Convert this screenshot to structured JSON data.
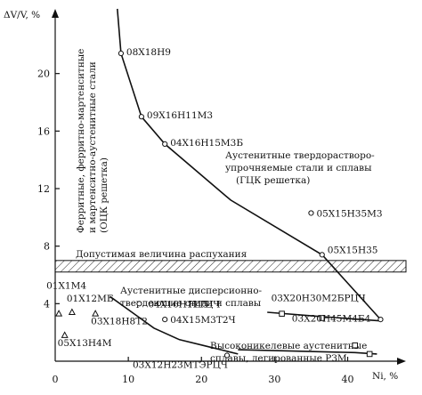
{
  "chart_data": {
    "type": "scatter",
    "title": "",
    "ylabel": "ΔV/V, %",
    "xlabel": "Ni, %",
    "xlim": [
      0,
      47
    ],
    "ylim": [
      0,
      24
    ],
    "x_ticks": [
      10,
      20,
      30,
      40
    ],
    "y_ticks": [
      4,
      8,
      12,
      16,
      20
    ],
    "zero_label": "0",
    "allowable_band": {
      "label": "Допустимая величина распухания",
      "y_from": 6.2,
      "y_to": 7.0
    },
    "region_labels": {
      "ferritic": [
        "Ферритные, ферритно-мартенситные",
        "и мартенситно-аустенитные стали",
        "(ОЦК решетка)"
      ],
      "austenitic_solid_solution": [
        "Аустенитные твердораствoро-",
        "упрочняемые стали и сплавы",
        "(ГЦК решетка)"
      ],
      "austenitic_dispersion": [
        "Аустенитные дисперсионно-",
        "твердеющие стали и сплавы"
      ],
      "high_nickel": [
        "Высоконикелевые аустенитные",
        "сплавы, легированные РЗМ"
      ]
    },
    "series": [
      {
        "points": [
          {
            "x": 9.0,
            "y": 21.4,
            "label": "08Х18Н9"
          },
          {
            "x": 11.8,
            "y": 17.0,
            "label": "09Х16Н11М3"
          },
          {
            "x": 15.0,
            "y": 15.1,
            "label": "04Х16Н15М3Б"
          },
          {
            "x": 35.0,
            "y": 10.3,
            "label": "05Х15Н35М3"
          },
          {
            "x": 36.5,
            "y": 7.4,
            "label": "05Х15Н35"
          },
          {
            "x": 44.5,
            "y": 2.9,
            "label": ""
          }
        ],
        "curve": [
          [
            8.5,
            24.5
          ],
          [
            9.0,
            21.4
          ],
          [
            11.8,
            17.0
          ],
          [
            15.0,
            15.1
          ],
          [
            24.0,
            11.2
          ],
          [
            36.5,
            7.4
          ],
          [
            44.5,
            2.9
          ]
        ]
      },
      {
        "points": [
          {
            "x": 0.5,
            "y": 3.3,
            "label": "01Х1М4"
          },
          {
            "x": 2.3,
            "y": 3.4,
            "label": "01Х12МБ"
          },
          {
            "x": 5.5,
            "y": 3.3,
            "label": "03Х18Н8Т2"
          },
          {
            "x": 1.3,
            "y": 1.8,
            "label": "05Х13Н4М"
          }
        ]
      },
      {
        "points": [
          {
            "x": 11.5,
            "y": 4.0,
            "label": "04Х16Н11ТЦЧ"
          },
          {
            "x": 17.0,
            "y": 4.0,
            "label": "Н15"
          },
          {
            "x": 15.0,
            "y": 2.9,
            "label": "04Х15М3Т2Ч"
          },
          {
            "x": 23.5,
            "y": 0.4,
            "label": "03Х12Н23МТЭРЦЧ"
          }
        ],
        "curve": [
          [
            7.5,
            4.5
          ],
          [
            10.5,
            3.4
          ],
          [
            13.5,
            2.3
          ],
          [
            17.0,
            1.5
          ],
          [
            21.0,
            1.0
          ],
          [
            25.0,
            0.5
          ]
        ]
      },
      {
        "points": [
          {
            "x": 31.0,
            "y": 3.3,
            "label": "03Х20Н30М2БРЦЧ"
          },
          {
            "x": 36.5,
            "y": 3.0,
            "label": "03Х20Н45М4Б4"
          },
          {
            "x": 41.0,
            "y": 1.1,
            "label": ""
          },
          {
            "x": 43.0,
            "y": 0.5,
            "label": ""
          }
        ],
        "curve": [
          [
            29.0,
            3.4
          ],
          [
            36.5,
            3.1
          ],
          [
            44.5,
            2.8
          ]
        ]
      },
      {
        "curve": [
          [
            25.0,
            0.8
          ],
          [
            33.0,
            0.7
          ],
          [
            41.0,
            0.6
          ],
          [
            44.0,
            0.5
          ]
        ]
      }
    ]
  }
}
